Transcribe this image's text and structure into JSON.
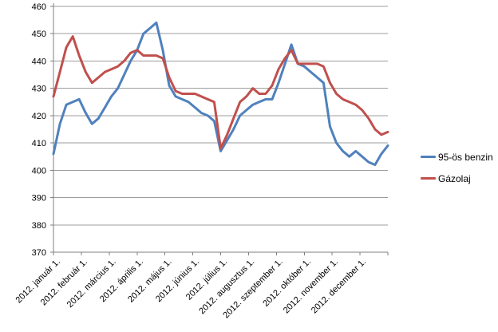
{
  "chart_data": {
    "type": "line",
    "title": "",
    "x_axis": {
      "tick_labels": [
        "2012. január 1.",
        "2012. február 1.",
        "2012. március 1.",
        "2012. április 1.",
        "2012. május 1.",
        "2012. június 1.",
        "2012. július 1.",
        "2012. augusztus 1.",
        "2012. szeptember 1.",
        "2012. október 1.",
        "2012. november 1.",
        "2012. december 1."
      ],
      "points_per_series": 53,
      "sampling": "weekly, Jan 1 – Dec 30 2012"
    },
    "y_axis": {
      "min": 370,
      "max": 460,
      "step": 10,
      "tick_labels": [
        "370",
        "380",
        "390",
        "400",
        "410",
        "420",
        "430",
        "440",
        "450",
        "460"
      ]
    },
    "grid": true,
    "legend_position": "right",
    "series": [
      {
        "name": "95-ös benzin",
        "color": "#4F81BD",
        "values": [
          406,
          417,
          424,
          425,
          426,
          421,
          417,
          419,
          423,
          427,
          430,
          435,
          440,
          444,
          450,
          452,
          454,
          444,
          431,
          427,
          426,
          425,
          423,
          421,
          420,
          418,
          407,
          411,
          415,
          420,
          422,
          424,
          425,
          426,
          426,
          432,
          439,
          446,
          439,
          438,
          436,
          434,
          432,
          416,
          410,
          407,
          405,
          407,
          405,
          403,
          402,
          406,
          409
        ]
      },
      {
        "name": "Gázolaj",
        "color": "#C0504D",
        "values": [
          427,
          436,
          445,
          449,
          442,
          436,
          432,
          434,
          436,
          437,
          438,
          440,
          443,
          444,
          442,
          442,
          442,
          441,
          434,
          429,
          428,
          428,
          428,
          427,
          426,
          425,
          408,
          413,
          419,
          425,
          427,
          430,
          428,
          428,
          431,
          437,
          441,
          444,
          439,
          439,
          439,
          439,
          438,
          432,
          428,
          426,
          425,
          424,
          422,
          419,
          415,
          413,
          414
        ]
      }
    ]
  },
  "colors": {
    "axis": "#7f7f7f",
    "grid": "#9c9c9c",
    "tick": "#7f7f7f",
    "text": "#000000",
    "background": "#ffffff"
  }
}
